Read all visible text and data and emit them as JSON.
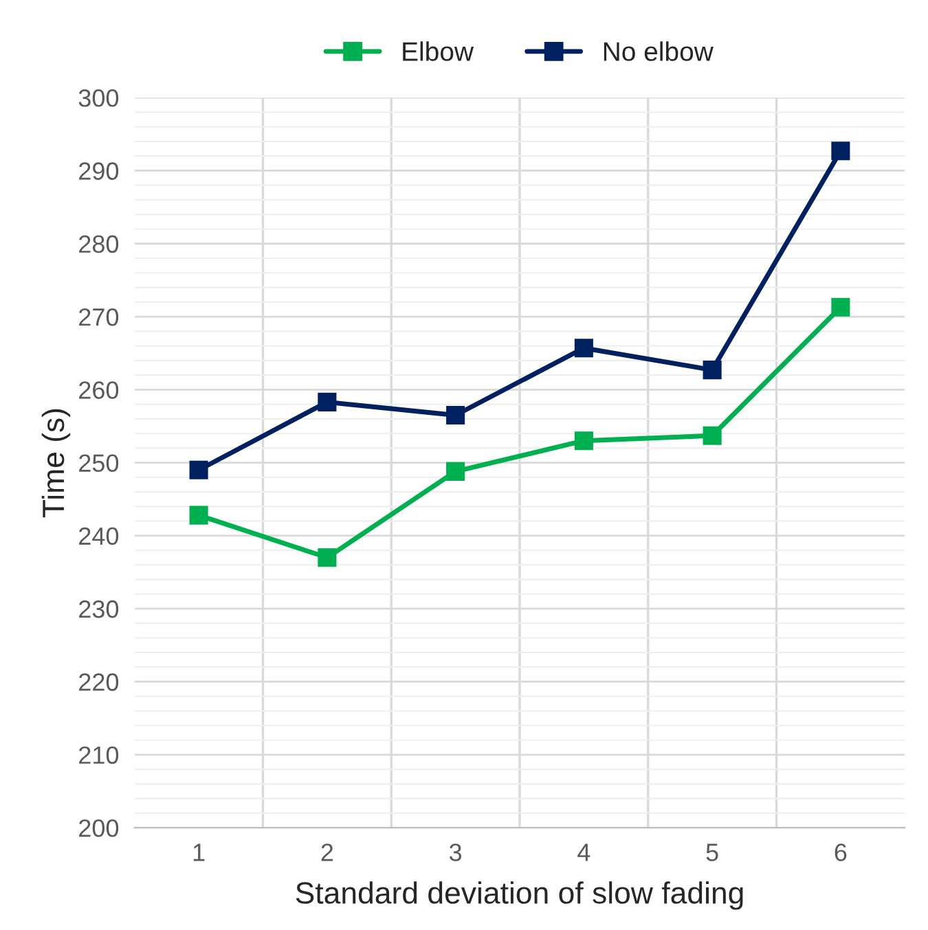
{
  "chart_data": {
    "type": "line",
    "xlabel": "Standard deviation of slow fading",
    "ylabel": "Time (s)",
    "categories": [
      "1",
      "2",
      "3",
      "4",
      "5",
      "6"
    ],
    "series": [
      {
        "name": "Elbow",
        "color": "#00b050",
        "values": [
          242.8,
          237,
          248.8,
          253,
          253.7,
          271.3
        ]
      },
      {
        "name": "No elbow",
        "color": "#002060",
        "values": [
          249,
          258.3,
          256.5,
          265.7,
          262.7,
          292.7
        ]
      }
    ],
    "ylim": [
      200,
      300
    ],
    "yticks": [
      200,
      210,
      220,
      230,
      240,
      250,
      260,
      270,
      280,
      290,
      300
    ],
    "grid": true,
    "legend": "top",
    "marker": "square",
    "line_style": "solid"
  }
}
